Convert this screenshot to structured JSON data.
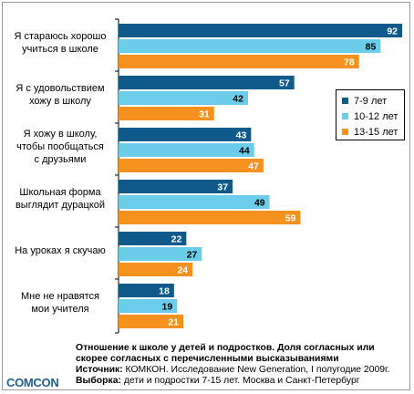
{
  "chart_data": {
    "type": "bar",
    "orientation": "horizontal",
    "categories": [
      "Я стараюсь хорошо\nучиться в школе",
      "Я с удовольствием\nхожу в школу",
      "Я хожу в школу,\nчтобы пообщаться\nс друзьями",
      "Школьная форма\nвыглядит дурацкой",
      "На уроках я скучаю",
      "Мне не нравятся\nмои учителя"
    ],
    "series": [
      {
        "name": "7-9 лет",
        "color": "#0f5a8a",
        "values": [
          92,
          57,
          43,
          37,
          22,
          18
        ]
      },
      {
        "name": "10-12 лет",
        "color": "#6ccdea",
        "values": [
          85,
          42,
          44,
          49,
          27,
          19
        ]
      },
      {
        "name": "13-15 лет",
        "color": "#f5921f",
        "values": [
          78,
          31,
          47,
          59,
          24,
          21
        ]
      }
    ],
    "xlim": [
      0,
      92
    ],
    "legend_position": "right",
    "grid": false
  },
  "footer": {
    "title": "Отношение к школе у детей и подростков. Доля согласных или скорее согласных с перечисленными высказываниями",
    "source_label": "Источник:",
    "source_text": " КОМКОН. Исследование New Generation, I полугодие 2009г.",
    "sample_label": "Выборка:",
    "sample_text": " дети и подростки 7-15 лет. Москва и Санкт-Петербург"
  },
  "logo": "COMCON"
}
